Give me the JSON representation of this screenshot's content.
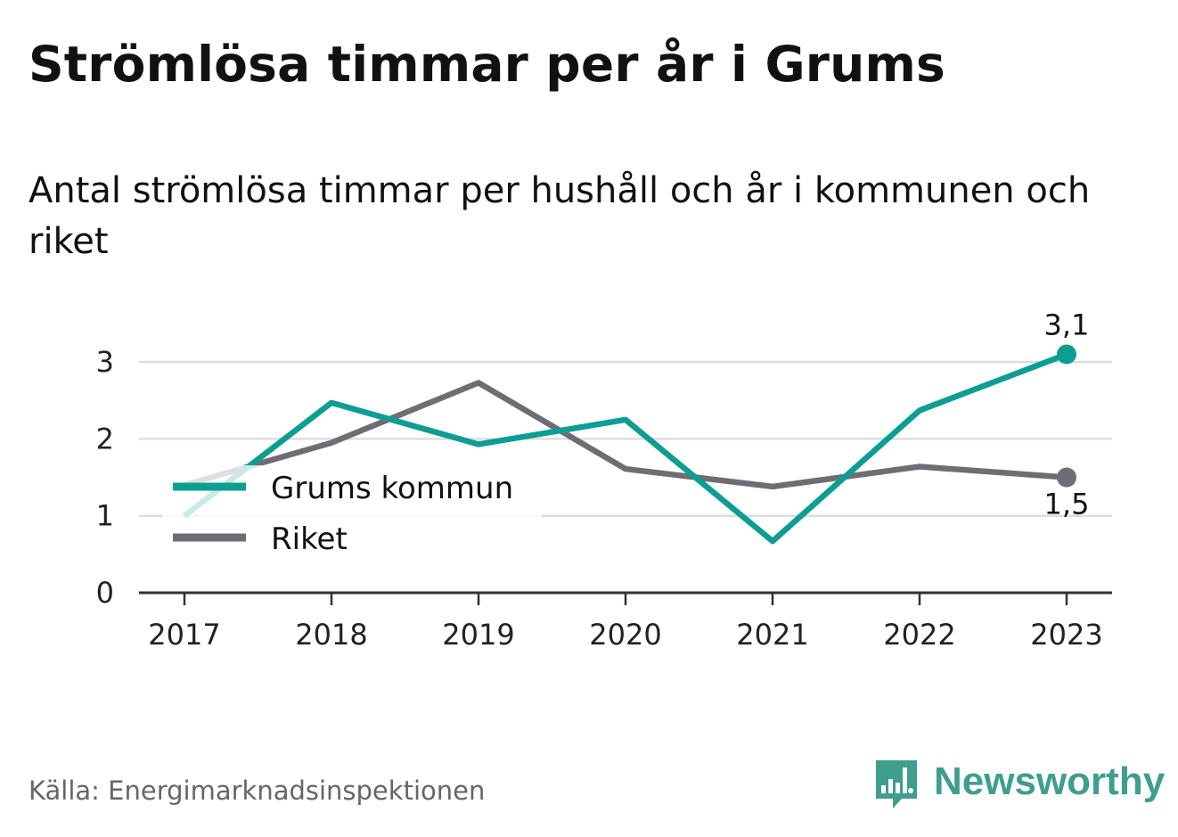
{
  "title": "Strömlösa timmar per år i Grums",
  "subtitle": "Antal strömlösa timmar per hushåll och år i kommunen och riket",
  "source": "Källa: Energimarknadsinspektionen",
  "brand": {
    "name": "Newsworthy",
    "color": "#3f9e8e",
    "icon": "bar-chart-logo-icon"
  },
  "chart_data": {
    "type": "line",
    "x": [
      2017,
      2018,
      2019,
      2020,
      2021,
      2022,
      2023
    ],
    "xticks": [
      "2017",
      "2018",
      "2019",
      "2020",
      "2021",
      "2022",
      "2023"
    ],
    "yticks": [
      "0",
      "1",
      "2",
      "3"
    ],
    "ylim": [
      0,
      3.2
    ],
    "grid": true,
    "legend_position": "left",
    "series": [
      {
        "name": "Grums kommun",
        "color": "#0d9e92",
        "values": [
          1.0,
          2.47,
          1.93,
          2.25,
          0.67,
          2.37,
          3.1
        ],
        "end_label": "3,1"
      },
      {
        "name": "Riket",
        "color": "#6f6d74",
        "values": [
          1.4,
          1.95,
          2.73,
          1.61,
          1.38,
          1.64,
          1.5
        ],
        "end_label": "1,5"
      }
    ]
  }
}
